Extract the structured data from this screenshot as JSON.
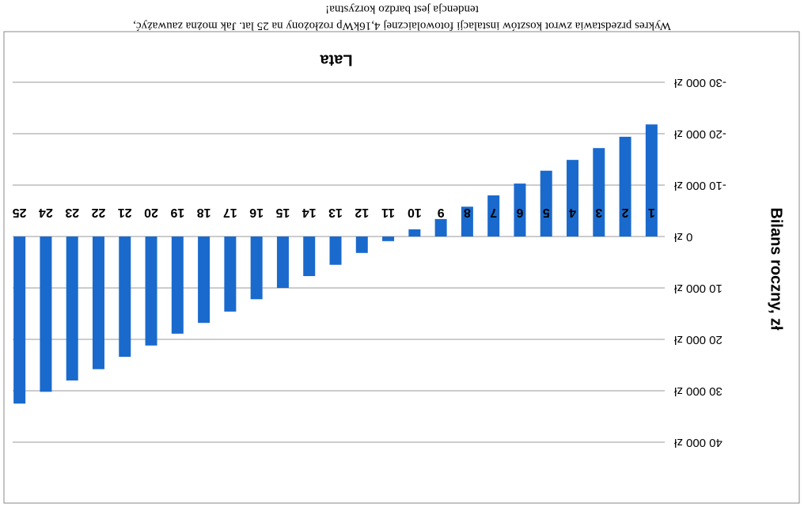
{
  "chart_data": {
    "type": "bar",
    "caption": [
      "Wykres przedstawia zwrot kosztów instalacji fotowolaicznej 4,16kWp rozłożony na 25 lat. Jak można zauważyć,",
      "tendencja jest bardzo korzystna!"
    ],
    "x_label": "Lata",
    "y_label": "Bilans roczny, zł",
    "categories": [
      "1",
      "2",
      "3",
      "4",
      "5",
      "6",
      "7",
      "8",
      "9",
      "10",
      "11",
      "12",
      "13",
      "14",
      "15",
      "16",
      "17",
      "18",
      "19",
      "20",
      "21",
      "22",
      "23",
      "24",
      "25"
    ],
    "values": [
      -21800,
      -19400,
      -17200,
      -14900,
      -12800,
      -10300,
      -8000,
      -5800,
      -3400,
      -1400,
      900,
      3200,
      5500,
      7700,
      10000,
      12200,
      14600,
      16800,
      18900,
      21200,
      23400,
      25800,
      28000,
      30200,
      32500
    ],
    "color": "#1a6acd",
    "ylim": [
      -30000,
      40000
    ],
    "yticks": [
      {
        "value": -30000,
        "label": "-30 000 zł"
      },
      {
        "value": -20000,
        "label": "-20 000 zł"
      },
      {
        "value": -10000,
        "label": "-10 000 zł"
      },
      {
        "value": 0,
        "label": "0 zł"
      },
      {
        "value": 10000,
        "label": "10 000 zł"
      },
      {
        "value": 20000,
        "label": "20 000 zł"
      },
      {
        "value": 30000,
        "label": "30 000 zł"
      },
      {
        "value": 40000,
        "label": "40 000 zł"
      }
    ],
    "grid": true
  }
}
